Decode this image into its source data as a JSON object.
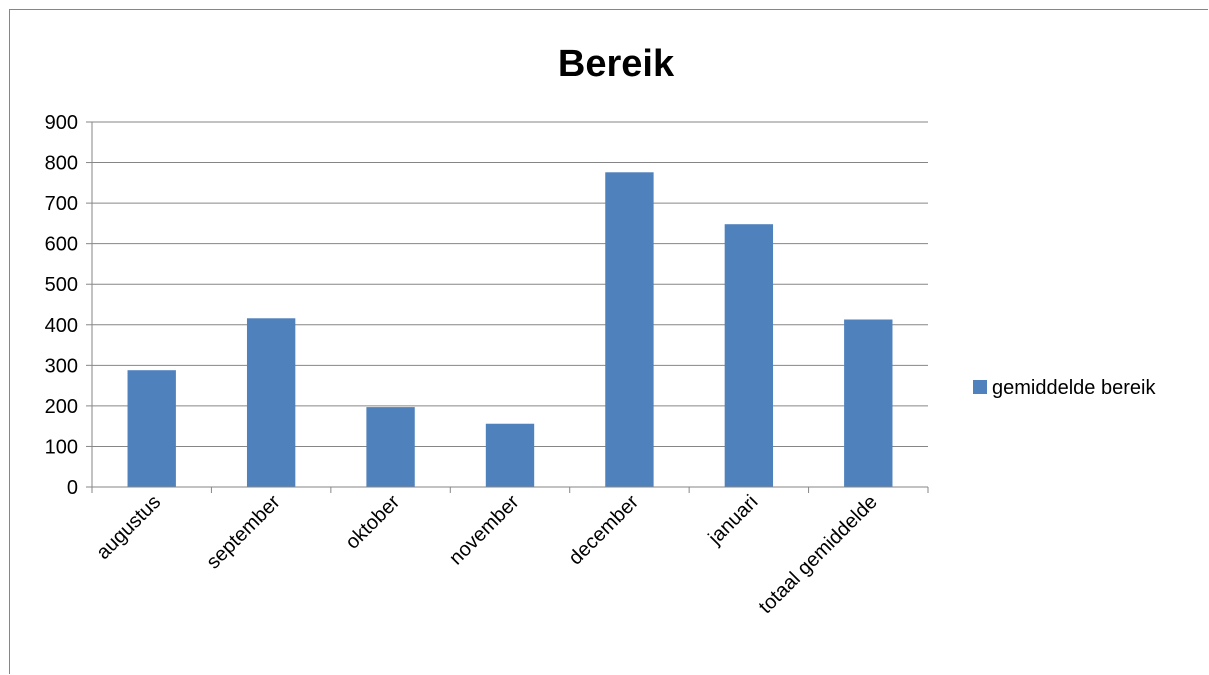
{
  "chart_data": {
    "type": "bar",
    "title": "Bereik",
    "categories": [
      "augustus",
      "september",
      "oktober",
      "november",
      "december",
      "januari",
      "totaal gemiddelde"
    ],
    "series": [
      {
        "name": "gemiddelde bereik",
        "values": [
          288,
          416,
          197,
          156,
          776,
          648,
          413
        ]
      }
    ],
    "ylim": [
      0,
      900
    ],
    "yticks": [
      0,
      100,
      200,
      300,
      400,
      500,
      600,
      700,
      800,
      900
    ],
    "grid": true,
    "legend": "right",
    "colors": {
      "bar": "#4F81BD",
      "grid": "#868686",
      "axis": "#868686"
    }
  }
}
